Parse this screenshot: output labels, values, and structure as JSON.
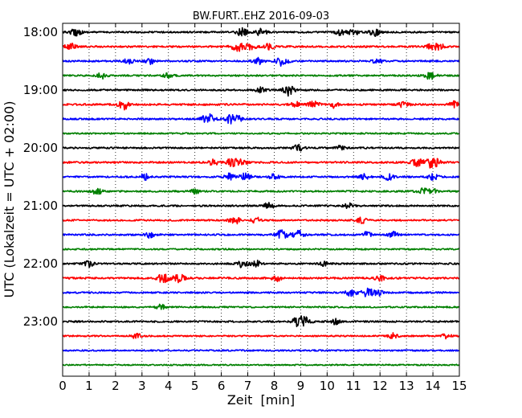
{
  "chart_data": {
    "type": "line",
    "title": "BW.FURT..EHZ 2016-09-03",
    "xlabel": "Zeit  [min]",
    "ylabel": "UTC (Lokalzeit = UTC + 02:00)",
    "xlim": [
      0,
      15
    ],
    "x_ticks": [
      0,
      1,
      2,
      3,
      4,
      5,
      6,
      7,
      8,
      9,
      10,
      11,
      12,
      13,
      14,
      15
    ],
    "x_tick_labels": [
      "0",
      "1",
      "2",
      "3",
      "4",
      "5",
      "6",
      "7",
      "8",
      "9",
      "10",
      "11",
      "12",
      "13",
      "14",
      "15"
    ],
    "x_grid": "dotted, at every minute",
    "y_tick_labels": [
      "18:00",
      "19:00",
      "20:00",
      "21:00",
      "22:00",
      "23:00"
    ],
    "y_tick_rows": [
      0,
      4,
      8,
      12,
      16,
      20
    ],
    "traces_per_hour": 4,
    "color_cycle": [
      "#000000",
      "#ff0000",
      "#0000ff",
      "#008000"
    ],
    "traces": [
      {
        "start": "18:00",
        "color": "#000000",
        "amplitude": 1.0,
        "events": [
          [
            0.5,
            2.0
          ],
          [
            6.8,
            2.2
          ],
          [
            7.5,
            2.0
          ],
          [
            10.5,
            1.6
          ],
          [
            11.0,
            1.8
          ],
          [
            11.8,
            2.2
          ]
        ]
      },
      {
        "start": "18:15",
        "color": "#ff0000",
        "amplitude": 1.1,
        "events": [
          [
            0.3,
            1.8
          ],
          [
            6.6,
            2.5
          ],
          [
            7.1,
            1.8
          ],
          [
            7.8,
            1.5
          ],
          [
            14.0,
            2.0
          ],
          [
            14.3,
            1.6
          ]
        ]
      },
      {
        "start": "18:30",
        "color": "#0000ff",
        "amplitude": 1.0,
        "events": [
          [
            2.5,
            1.5
          ],
          [
            3.3,
            1.6
          ],
          [
            7.4,
            1.8
          ],
          [
            8.3,
            2.6
          ],
          [
            11.9,
            1.5
          ]
        ]
      },
      {
        "start": "18:45",
        "color": "#008000",
        "amplitude": 1.0,
        "events": [
          [
            1.5,
            1.8
          ],
          [
            4.0,
            1.4
          ],
          [
            13.9,
            2.0
          ]
        ]
      },
      {
        "start": "19:00",
        "color": "#000000",
        "amplitude": 1.0,
        "events": [
          [
            7.5,
            1.6
          ],
          [
            8.5,
            1.8
          ],
          [
            8.6,
            1.6
          ]
        ]
      },
      {
        "start": "19:15",
        "color": "#ff0000",
        "amplitude": 1.1,
        "events": [
          [
            2.3,
            2.6
          ],
          [
            8.8,
            1.6
          ],
          [
            9.5,
            2.0
          ],
          [
            10.2,
            1.8
          ],
          [
            12.9,
            1.6
          ],
          [
            14.8,
            1.6
          ]
        ]
      },
      {
        "start": "19:30",
        "color": "#0000ff",
        "amplitude": 1.0,
        "events": [
          [
            5.5,
            2.8
          ],
          [
            6.3,
            2.3
          ],
          [
            6.6,
            1.7
          ]
        ]
      },
      {
        "start": "19:45",
        "color": "#008000",
        "amplitude": 0.9,
        "events": []
      },
      {
        "start": "20:00",
        "color": "#000000",
        "amplitude": 1.0,
        "events": [
          [
            8.9,
            1.9
          ],
          [
            10.5,
            1.4
          ]
        ]
      },
      {
        "start": "20:15",
        "color": "#ff0000",
        "amplitude": 1.1,
        "events": [
          [
            5.7,
            1.6
          ],
          [
            6.4,
            2.4
          ],
          [
            6.8,
            1.6
          ],
          [
            13.4,
            2.0
          ],
          [
            13.9,
            2.3
          ],
          [
            14.1,
            1.8
          ]
        ]
      },
      {
        "start": "20:30",
        "color": "#0000ff",
        "amplitude": 1.0,
        "events": [
          [
            3.1,
            1.6
          ],
          [
            6.3,
            1.8
          ],
          [
            6.9,
            2.0
          ],
          [
            8.0,
            1.5
          ],
          [
            11.4,
            1.6
          ],
          [
            12.3,
            1.8
          ],
          [
            14.0,
            1.6
          ]
        ]
      },
      {
        "start": "20:45",
        "color": "#008000",
        "amplitude": 1.0,
        "events": [
          [
            1.3,
            1.7
          ],
          [
            5.0,
            1.4
          ],
          [
            13.6,
            1.8
          ],
          [
            14.0,
            1.6
          ]
        ]
      },
      {
        "start": "21:00",
        "color": "#000000",
        "amplitude": 1.0,
        "events": [
          [
            7.8,
            1.8
          ],
          [
            10.8,
            1.4
          ]
        ]
      },
      {
        "start": "21:15",
        "color": "#ff0000",
        "amplitude": 1.0,
        "events": [
          [
            6.5,
            2.0
          ],
          [
            7.3,
            1.6
          ],
          [
            11.3,
            1.6
          ]
        ]
      },
      {
        "start": "21:30",
        "color": "#0000ff",
        "amplitude": 1.0,
        "events": [
          [
            3.3,
            1.6
          ],
          [
            8.3,
            2.6
          ],
          [
            8.9,
            2.3
          ],
          [
            11.5,
            1.5
          ],
          [
            12.5,
            1.5
          ]
        ]
      },
      {
        "start": "21:45",
        "color": "#008000",
        "amplitude": 0.9,
        "events": []
      },
      {
        "start": "22:00",
        "color": "#000000",
        "amplitude": 1.0,
        "events": [
          [
            1.0,
            1.6
          ],
          [
            6.8,
            2.0
          ],
          [
            7.3,
            1.7
          ],
          [
            9.9,
            1.3
          ]
        ]
      },
      {
        "start": "22:15",
        "color": "#ff0000",
        "amplitude": 1.1,
        "events": [
          [
            3.8,
            2.4
          ],
          [
            4.4,
            2.2
          ],
          [
            8.1,
            1.5
          ],
          [
            12.0,
            1.5
          ]
        ]
      },
      {
        "start": "22:30",
        "color": "#0000ff",
        "amplitude": 1.0,
        "events": [
          [
            10.9,
            1.8
          ],
          [
            11.5,
            2.3
          ],
          [
            11.9,
            1.8
          ]
        ]
      },
      {
        "start": "22:45",
        "color": "#008000",
        "amplitude": 0.9,
        "events": [
          [
            3.7,
            1.5
          ]
        ]
      },
      {
        "start": "23:00",
        "color": "#000000",
        "amplitude": 1.0,
        "events": [
          [
            8.9,
            2.6
          ],
          [
            9.2,
            2.0
          ],
          [
            10.3,
            1.5
          ]
        ]
      },
      {
        "start": "23:15",
        "color": "#ff0000",
        "amplitude": 0.9,
        "events": [
          [
            2.8,
            1.5
          ],
          [
            12.5,
            1.5
          ],
          [
            14.5,
            1.4
          ]
        ]
      },
      {
        "start": "23:30",
        "color": "#0000ff",
        "amplitude": 0.9,
        "events": []
      },
      {
        "start": "23:45",
        "color": "#008000",
        "amplitude": 0.8,
        "events": []
      }
    ]
  }
}
